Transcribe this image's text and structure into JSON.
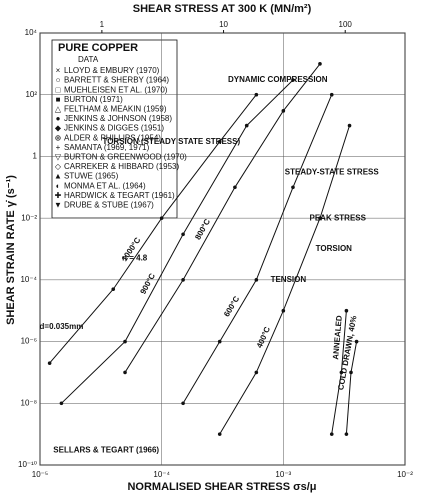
{
  "chart_data": {
    "type": "line",
    "title": "SHEAR STRESS AT 300 K (MN/m²)",
    "x_label": "NORMALISED SHEAR STRESS σs/μ",
    "y_label": "SHEAR STRAIN RATE γ̇ (s⁻¹)",
    "log_x": true,
    "log_y": true,
    "grid": true,
    "xlim": [
      1e-05,
      0.01
    ],
    "ylim": [
      1e-10,
      10000
    ],
    "x2lim": [
      0.31,
      310
    ],
    "xticks": [
      {
        "value": 1e-05,
        "label": "10⁻⁵"
      },
      {
        "value": 0.0001,
        "label": "10⁻⁴"
      },
      {
        "value": 0.001,
        "label": "10⁻³"
      },
      {
        "value": 0.01,
        "label": "10⁻²"
      }
    ],
    "x2ticks": [
      1,
      10,
      100
    ],
    "yticks": [
      {
        "value": 10000,
        "label": "10⁴"
      },
      {
        "value": 100,
        "label": "10²"
      },
      1,
      {
        "value": 0.01,
        "label": "10⁻²"
      },
      {
        "value": 0.0001,
        "label": "10⁻⁴"
      },
      {
        "value": 1e-06,
        "label": "10⁻⁶"
      },
      {
        "value": 1e-08,
        "label": "10⁻⁸"
      },
      {
        "value": 1e-10,
        "label": "10⁻¹⁰"
      }
    ],
    "legend_title": "PURE COPPER",
    "legend_subtitle": "DATA",
    "legend_entries": [
      "LLOYD & EMBURY (1970)",
      "BARRETT & SHERBY (1964)",
      "MUEHLEISEN ET AL. (1970)",
      "BURTON (1971)",
      "FELTHAM & MEAKIN (1959)",
      "JENKINS & JOHNSON (1958)",
      "JENKINS & DIGGES (1951)",
      "ALDER & PHILLIPS (1954)",
      "SAMANTA (1969, 1971)",
      "BURTON & GREENWOOD (1970)",
      "CARREKER & HIBBARD (1953)",
      "STUWE (1965)",
      "MONMA ET AL. (1964)",
      "HARDWICK & TEGART (1961)",
      "DRUBE & STUBE (1967)"
    ],
    "series": [
      {
        "name": "1000°C",
        "color": "#111111",
        "x": [
          1.2e-05,
          4e-05,
          0.0001,
          0.0003,
          0.0006
        ],
        "values": [
          2e-07,
          5e-05,
          0.01,
          3,
          100
        ]
      },
      {
        "name": "900°C",
        "color": "#111111",
        "x": [
          1.5e-05,
          5e-05,
          0.00015,
          0.0005,
          0.0012
        ],
        "values": [
          1e-08,
          1e-06,
          0.003,
          10,
          300
        ]
      },
      {
        "name": "800°C",
        "color": "#111111",
        "x": [
          5e-05,
          0.00015,
          0.0004,
          0.001,
          0.002
        ],
        "values": [
          1e-07,
          0.0001,
          0.1,
          30,
          1000
        ]
      },
      {
        "name": "600°C",
        "color": "#111111",
        "x": [
          0.00015,
          0.0003,
          0.0006,
          0.0012,
          0.0025
        ],
        "values": [
          1e-08,
          1e-06,
          0.0001,
          0.1,
          100
        ]
      },
      {
        "name": "400°C",
        "color": "#111111",
        "x": [
          0.0003,
          0.0006,
          0.001,
          0.002,
          0.0035
        ],
        "values": [
          1e-09,
          1e-07,
          1e-05,
          0.01,
          10
        ]
      },
      {
        "name": "ANNEALED",
        "color": "#111111",
        "x": [
          0.0025,
          0.003,
          0.0033
        ],
        "values": [
          1e-09,
          1e-07,
          1e-05
        ]
      },
      {
        "name": "COLD DRAWN, 40%",
        "color": "#111111",
        "x": [
          0.0033,
          0.0036,
          0.004
        ],
        "values": [
          1e-09,
          1e-07,
          1e-06
        ]
      }
    ],
    "annotations": [
      {
        "text": "DYNAMIC COMPRESSION",
        "x": 0.0009,
        "y": 300
      },
      {
        "text": "TORSION (STEADY STATE STRESS)",
        "x": 0.00012,
        "y": 3
      },
      {
        "text": "STEADY-STATE STRESS",
        "x": 0.0025,
        "y": 0.3
      },
      {
        "text": "PEAK STRESS",
        "x": 0.0028,
        "y": 0.01
      },
      {
        "text": "TORSION",
        "x": 0.0026,
        "y": 0.001
      },
      {
        "text": "TENSION",
        "x": 0.0011,
        "y": 0.0001
      },
      {
        "text": "SELLARS & TEGART (1966)",
        "x": 3.5e-05,
        "y": 3e-10
      },
      {
        "text": "d=0.035mm",
        "x": 1.5e-05,
        "y": 3e-06
      },
      {
        "text": "n = 4.8",
        "x": 6e-05,
        "y": 0.0005
      }
    ]
  }
}
